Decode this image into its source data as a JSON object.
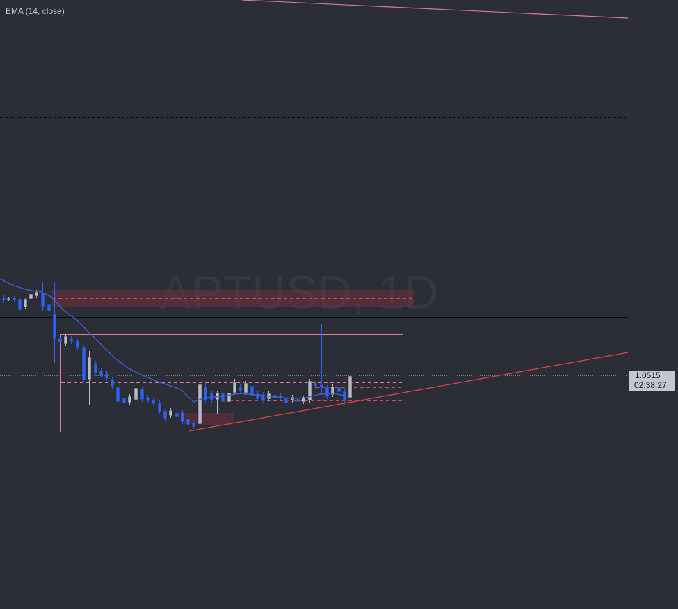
{
  "indicator_label": "EMA (14, close)",
  "watermark": "APTUSD, 1D",
  "price_label": {
    "price": "1.0515",
    "countdown": "02:38:27"
  }
}
